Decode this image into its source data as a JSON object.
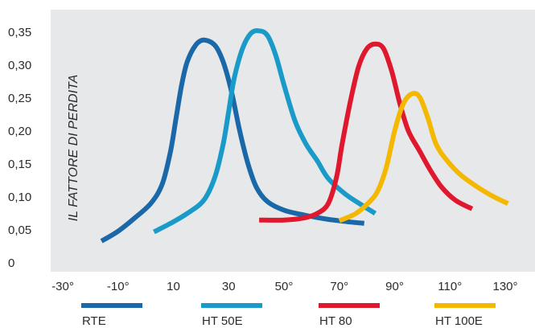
{
  "chart_data": {
    "type": "line",
    "title": "",
    "xlabel": "",
    "ylabel": "IL FATTORE DI PERDITA",
    "x_ticks": [
      "-30°",
      "-10°",
      "10",
      "30",
      "50°",
      "70°",
      "90°",
      "110°",
      "130°"
    ],
    "x_tick_values": [
      -30,
      -10,
      10,
      30,
      50,
      70,
      90,
      110,
      130
    ],
    "y_ticks": [
      "0",
      "0,05",
      "0,10",
      "0,15",
      "0,20",
      "0,25",
      "0,30",
      "0,35"
    ],
    "y_tick_values": [
      0,
      0.05,
      0.1,
      0.15,
      0.2,
      0.25,
      0.3,
      0.35
    ],
    "xlim": [
      -30,
      140
    ],
    "ylim": [
      0,
      0.38
    ],
    "grid": false,
    "legend_position": "bottom",
    "plot_background": "#e6e8ea",
    "series": [
      {
        "name": "RTE",
        "color": "#1a68a8",
        "points": [
          [
            -16,
            0.033
          ],
          [
            -10,
            0.048
          ],
          [
            -4,
            0.068
          ],
          [
            2,
            0.091
          ],
          [
            6,
            0.12
          ],
          [
            9,
            0.17
          ],
          [
            11,
            0.22
          ],
          [
            13,
            0.27
          ],
          [
            15,
            0.305
          ],
          [
            18,
            0.33
          ],
          [
            21,
            0.338
          ],
          [
            25,
            0.33
          ],
          [
            28,
            0.305
          ],
          [
            31,
            0.26
          ],
          [
            34,
            0.2
          ],
          [
            37,
            0.15
          ],
          [
            40,
            0.115
          ],
          [
            44,
            0.093
          ],
          [
            50,
            0.08
          ],
          [
            58,
            0.072
          ],
          [
            66,
            0.066
          ],
          [
            74,
            0.062
          ],
          [
            79,
            0.06
          ]
        ]
      },
      {
        "name": "HT 50E",
        "color": "#1a9ac8",
        "points": [
          [
            3,
            0.047
          ],
          [
            9,
            0.06
          ],
          [
            15,
            0.075
          ],
          [
            21,
            0.095
          ],
          [
            25,
            0.13
          ],
          [
            28,
            0.18
          ],
          [
            30,
            0.23
          ],
          [
            32,
            0.28
          ],
          [
            35,
            0.325
          ],
          [
            38,
            0.348
          ],
          [
            41,
            0.352
          ],
          [
            44,
            0.345
          ],
          [
            47,
            0.315
          ],
          [
            50,
            0.27
          ],
          [
            54,
            0.215
          ],
          [
            58,
            0.18
          ],
          [
            62,
            0.155
          ],
          [
            66,
            0.128
          ],
          [
            72,
            0.105
          ],
          [
            78,
            0.088
          ],
          [
            83,
            0.075
          ]
        ]
      },
      {
        "name": "HT 80",
        "color": "#e0182d",
        "points": [
          [
            41,
            0.065
          ],
          [
            50,
            0.065
          ],
          [
            57,
            0.068
          ],
          [
            62,
            0.075
          ],
          [
            66,
            0.09
          ],
          [
            69,
            0.13
          ],
          [
            71,
            0.18
          ],
          [
            74,
            0.245
          ],
          [
            77,
            0.298
          ],
          [
            80,
            0.325
          ],
          [
            83,
            0.332
          ],
          [
            86,
            0.325
          ],
          [
            89,
            0.29
          ],
          [
            92,
            0.24
          ],
          [
            95,
            0.2
          ],
          [
            99,
            0.17
          ],
          [
            103,
            0.14
          ],
          [
            107,
            0.115
          ],
          [
            112,
            0.095
          ],
          [
            118,
            0.082
          ]
        ]
      },
      {
        "name": "HT 100E",
        "color": "#f5b800",
        "points": [
          [
            70,
            0.064
          ],
          [
            76,
            0.075
          ],
          [
            81,
            0.093
          ],
          [
            84,
            0.11
          ],
          [
            87,
            0.145
          ],
          [
            90,
            0.2
          ],
          [
            93,
            0.24
          ],
          [
            96,
            0.256
          ],
          [
            99,
            0.252
          ],
          [
            102,
            0.22
          ],
          [
            105,
            0.18
          ],
          [
            109,
            0.155
          ],
          [
            114,
            0.133
          ],
          [
            120,
            0.115
          ],
          [
            126,
            0.1
          ],
          [
            131,
            0.09
          ]
        ]
      }
    ]
  },
  "legend": {
    "items": [
      {
        "label": "RTE",
        "color": "#1a68a8"
      },
      {
        "label": "HT 50E",
        "color": "#1a9ac8"
      },
      {
        "label": "HT 80",
        "color": "#e0182d"
      },
      {
        "label": "HT 100E",
        "color": "#f5b800"
      }
    ]
  }
}
